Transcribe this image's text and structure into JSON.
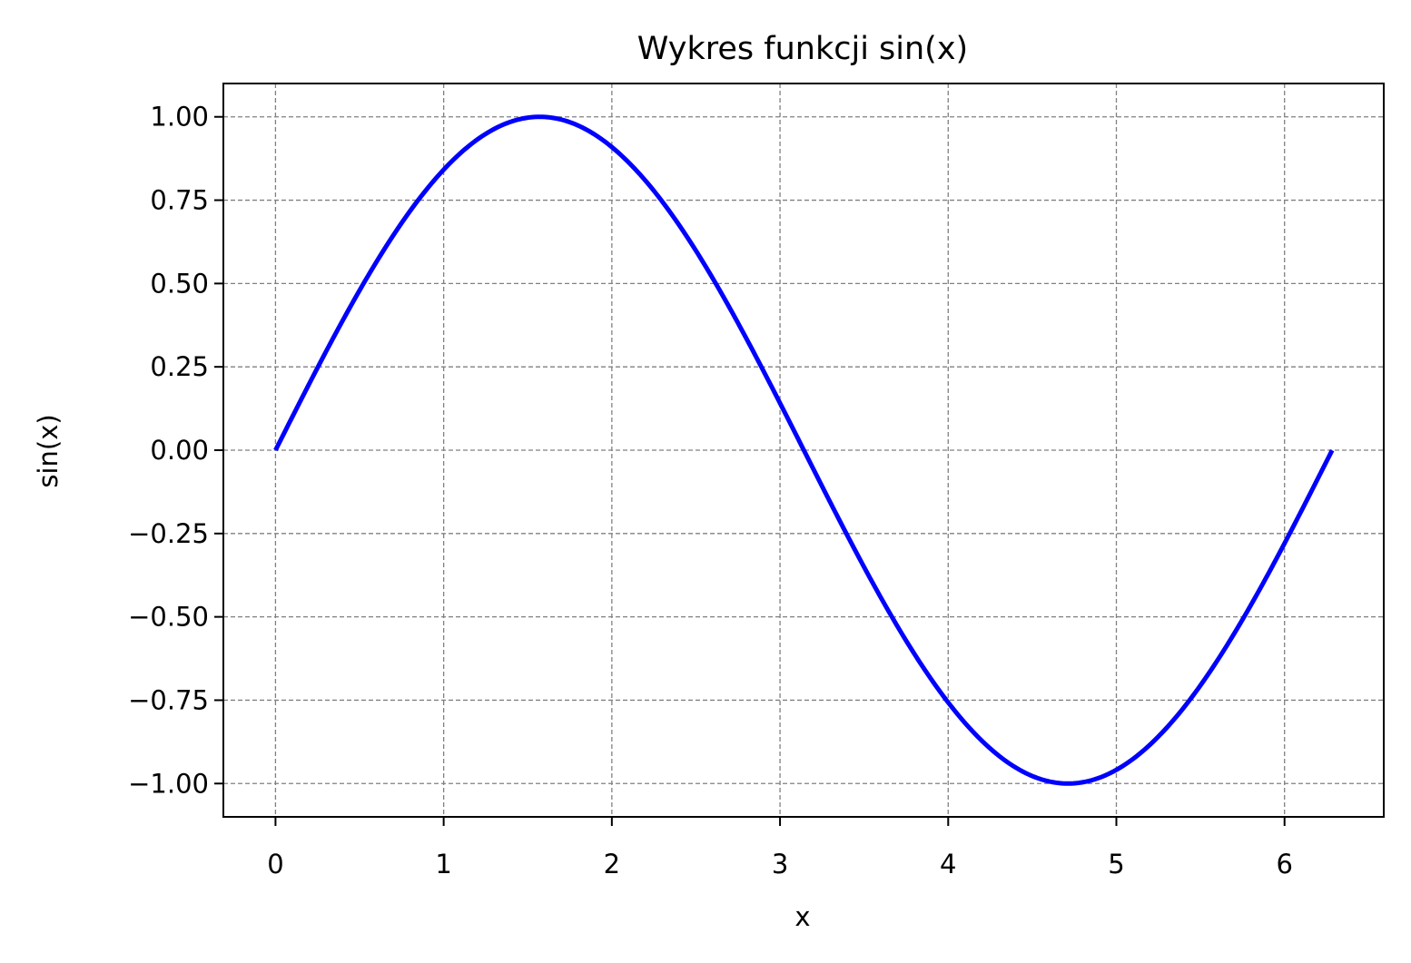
{
  "chart_data": {
    "type": "line",
    "title": "Wykres funkcji sin(x)",
    "xlabel": "x",
    "ylabel": "sin(x)",
    "function": "sin(x)",
    "x_domain": [
      0,
      6.283
    ],
    "xlim": [
      -0.31,
      6.59
    ],
    "ylim": [
      -1.1,
      1.1
    ],
    "xticks": [
      0,
      1,
      2,
      3,
      4,
      5,
      6
    ],
    "xtick_labels": [
      "0",
      "1",
      "2",
      "3",
      "4",
      "5",
      "6"
    ],
    "yticks": [
      1.0,
      0.75,
      0.5,
      0.25,
      0.0,
      -0.25,
      -0.5,
      -0.75,
      -1.0
    ],
    "ytick_labels": [
      "1.00",
      "0.75",
      "0.50",
      "0.25",
      "0.00",
      "−0.25",
      "−0.50",
      "−0.75",
      "−1.00"
    ],
    "grid": true,
    "grid_style": "dashed",
    "series": [
      {
        "color": "#0000ff",
        "x": [
          0,
          0.25,
          0.5,
          0.75,
          1.0,
          1.25,
          1.5,
          1.571,
          1.75,
          2.0,
          2.25,
          2.5,
          2.75,
          3.0,
          3.142,
          3.25,
          3.5,
          3.75,
          4.0,
          4.25,
          4.5,
          4.712,
          4.75,
          5.0,
          5.25,
          5.5,
          5.75,
          6.0,
          6.25,
          6.283
        ],
        "y": [
          0,
          0.247,
          0.479,
          0.682,
          0.841,
          0.949,
          0.997,
          1.0,
          0.984,
          0.909,
          0.778,
          0.598,
          0.382,
          0.141,
          0.0,
          -0.108,
          -0.351,
          -0.572,
          -0.757,
          -0.895,
          -0.978,
          -1.0,
          -0.999,
          -0.959,
          -0.859,
          -0.706,
          -0.508,
          -0.279,
          -0.033,
          0.0
        ]
      }
    ]
  }
}
